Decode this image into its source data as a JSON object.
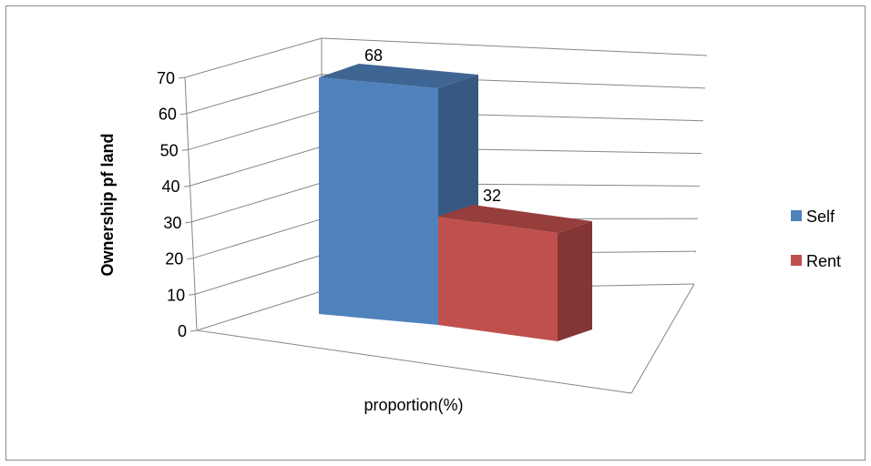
{
  "chart_data": {
    "type": "bar",
    "categories": [
      "proportion(%)"
    ],
    "series": [
      {
        "name": "Self",
        "values": [
          68
        ],
        "color": "#4F81BD"
      },
      {
        "name": "Rent",
        "values": [
          32
        ],
        "color": "#C0504D"
      }
    ],
    "xlabel": "proportion(%)",
    "ylabel": "Ownership pf land",
    "ylim": [
      0,
      70
    ],
    "yticks": [
      "0",
      "10",
      "20",
      "30",
      "40",
      "50",
      "60",
      "70"
    ],
    "data_labels": [
      "68",
      "32"
    ],
    "grid": true,
    "legend": "right",
    "style": "3d-clustered-column"
  }
}
